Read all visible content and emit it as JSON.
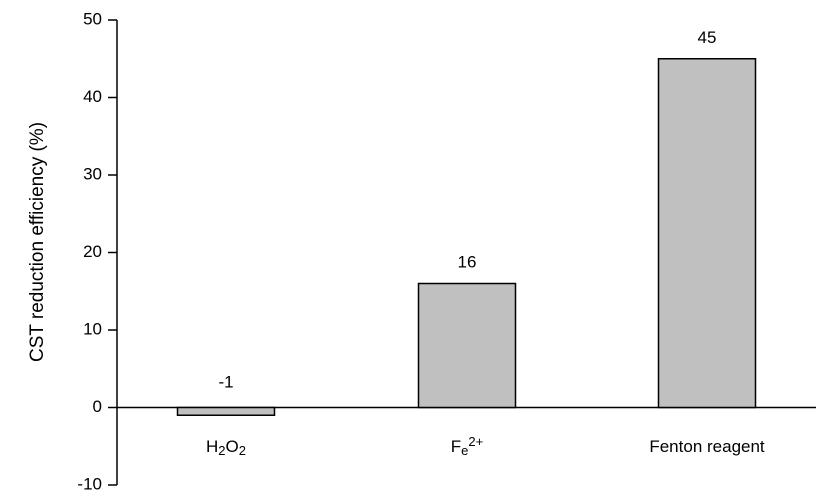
{
  "chart_data": {
    "type": "bar",
    "title": "",
    "xlabel": "",
    "ylabel": "CST reduction efficiency  (%)",
    "ylim": [
      -10,
      50
    ],
    "yticks": [
      -10,
      0,
      10,
      20,
      30,
      40,
      50
    ],
    "grid": false,
    "legend": "none",
    "categories": [
      {
        "label": [
          {
            "t": "H"
          },
          {
            "t": "2",
            "s": "sub"
          },
          {
            "t": "O"
          },
          {
            "t": "2",
            "s": "sub"
          }
        ]
      },
      {
        "label": [
          {
            "t": "F"
          },
          {
            "t": "e",
            "s": "sub"
          },
          {
            "t": "2+",
            "s": "sup"
          }
        ]
      },
      {
        "label": [
          {
            "t": "Fenton reagent"
          }
        ]
      }
    ],
    "values": [
      -1,
      16,
      45
    ],
    "data_labels": [
      "-1",
      "16",
      "45"
    ],
    "colors": {
      "bar_fill": "#c0c0c0",
      "bar_stroke": "#000000",
      "axis": "#000000"
    }
  }
}
